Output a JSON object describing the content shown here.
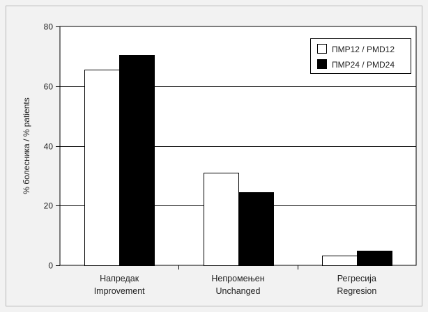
{
  "chart_data": {
    "type": "bar",
    "categories": [
      [
        "Напредак",
        "Improvement"
      ],
      [
        "Непромењен",
        "Unchanged"
      ],
      [
        "Регресија",
        "Regresion"
      ]
    ],
    "series": [
      {
        "name": "ПМР12 / PMD12",
        "values": [
          65.5,
          31,
          3.2
        ],
        "color": "#ffffff"
      },
      {
        "name": "ПМР24 / PMD24",
        "values": [
          70.5,
          24.5,
          5
        ],
        "color": "#000000"
      }
    ],
    "title": "",
    "xlabel": "",
    "ylabel": "% болесника / % patients",
    "ylim": [
      0,
      80
    ],
    "yticks": [
      0,
      20,
      40,
      60,
      80
    ],
    "grid": true,
    "legend_position": "top-right"
  }
}
